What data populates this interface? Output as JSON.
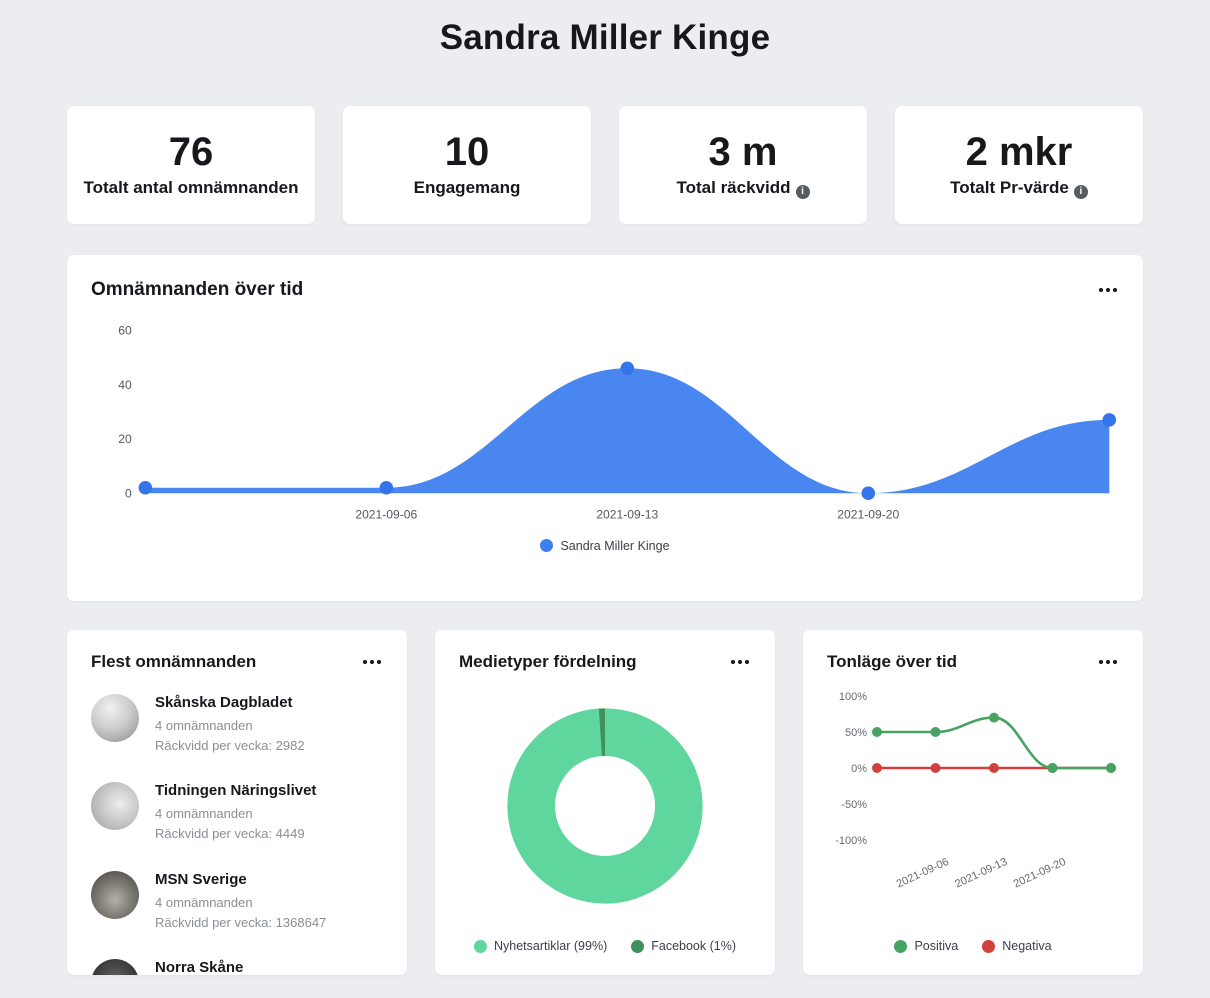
{
  "page": {
    "title": "Sandra Miller Kinge"
  },
  "icons": {
    "info": "i"
  },
  "stats": [
    {
      "value": "76",
      "label": "Totalt antal omnämnanden"
    },
    {
      "value": "10",
      "label": "Engagemang"
    },
    {
      "value": "3 m",
      "label": "Total räckvidd"
    },
    {
      "value": "2 mkr",
      "label": "Totalt Pr-värde"
    }
  ],
  "mentions_over_time": {
    "title": "Omnämnanden över tid",
    "legend": [
      {
        "label": "Sandra Miller Kinge",
        "color": "#3d7ef0"
      }
    ],
    "chart_data": {
      "type": "area",
      "x_labels": [
        "",
        "2021-09-06",
        "2021-09-13",
        "2021-09-20",
        ""
      ],
      "series": [
        {
          "name": "Sandra Miller Kinge",
          "values": [
            2,
            2,
            46,
            0,
            27
          ],
          "color": "#4a86f0",
          "dot_color": "#3575ea"
        }
      ],
      "yticks": [
        0,
        20,
        40,
        60
      ],
      "ylim": [
        0,
        60
      ],
      "grid": false,
      "legend_position": "bottom"
    }
  },
  "top_mentions": {
    "title": "Flest omnämnanden",
    "items": [
      {
        "name": "Skånska Dagbladet",
        "mentions": "4 omnämnanden",
        "reach": "Räckvidd per vecka: 2982"
      },
      {
        "name": "Tidningen Näringslivet",
        "mentions": "4 omnämnanden",
        "reach": "Räckvidd per vecka: 4449"
      },
      {
        "name": "MSN Sverige",
        "mentions": "4 omnämnanden",
        "reach": "Räckvidd per vecka: 1368647"
      },
      {
        "name": "Norra Skåne"
      }
    ]
  },
  "media_types": {
    "title": "Medietyper fördelning",
    "legend": [
      {
        "label": "Nyhetsartiklar (99%)",
        "color": "#5fd69d"
      },
      {
        "label": "Facebook (1%)",
        "color": "#3f9059"
      }
    ],
    "chart_data": {
      "type": "pie",
      "labels": [
        "Nyhetsartiklar",
        "Facebook"
      ],
      "values": [
        99,
        1
      ],
      "colors": [
        "#5fd69d",
        "#3f9059"
      ],
      "legend_position": "bottom"
    }
  },
  "tone_over_time": {
    "title": "Tonläge över tid",
    "legend": [
      {
        "label": "Positiva",
        "color": "#47a264"
      },
      {
        "label": "Negativa",
        "color": "#d2403e"
      }
    ],
    "chart_data": {
      "type": "line",
      "x_labels": [
        "",
        "2021-09-06",
        "2021-09-13",
        "2021-09-20",
        ""
      ],
      "series": [
        {
          "name": "Positiva",
          "values": [
            50,
            50,
            70,
            0,
            0
          ],
          "color": "#47a264"
        },
        {
          "name": "Negativa",
          "values": [
            0,
            0,
            0,
            0,
            0
          ],
          "color": "#d2403e"
        }
      ],
      "yticks": [
        "100%",
        "50%",
        "0%",
        "-50%",
        "-100%"
      ],
      "ylim": [
        -100,
        100
      ],
      "grid": false,
      "legend_position": "bottom"
    }
  }
}
